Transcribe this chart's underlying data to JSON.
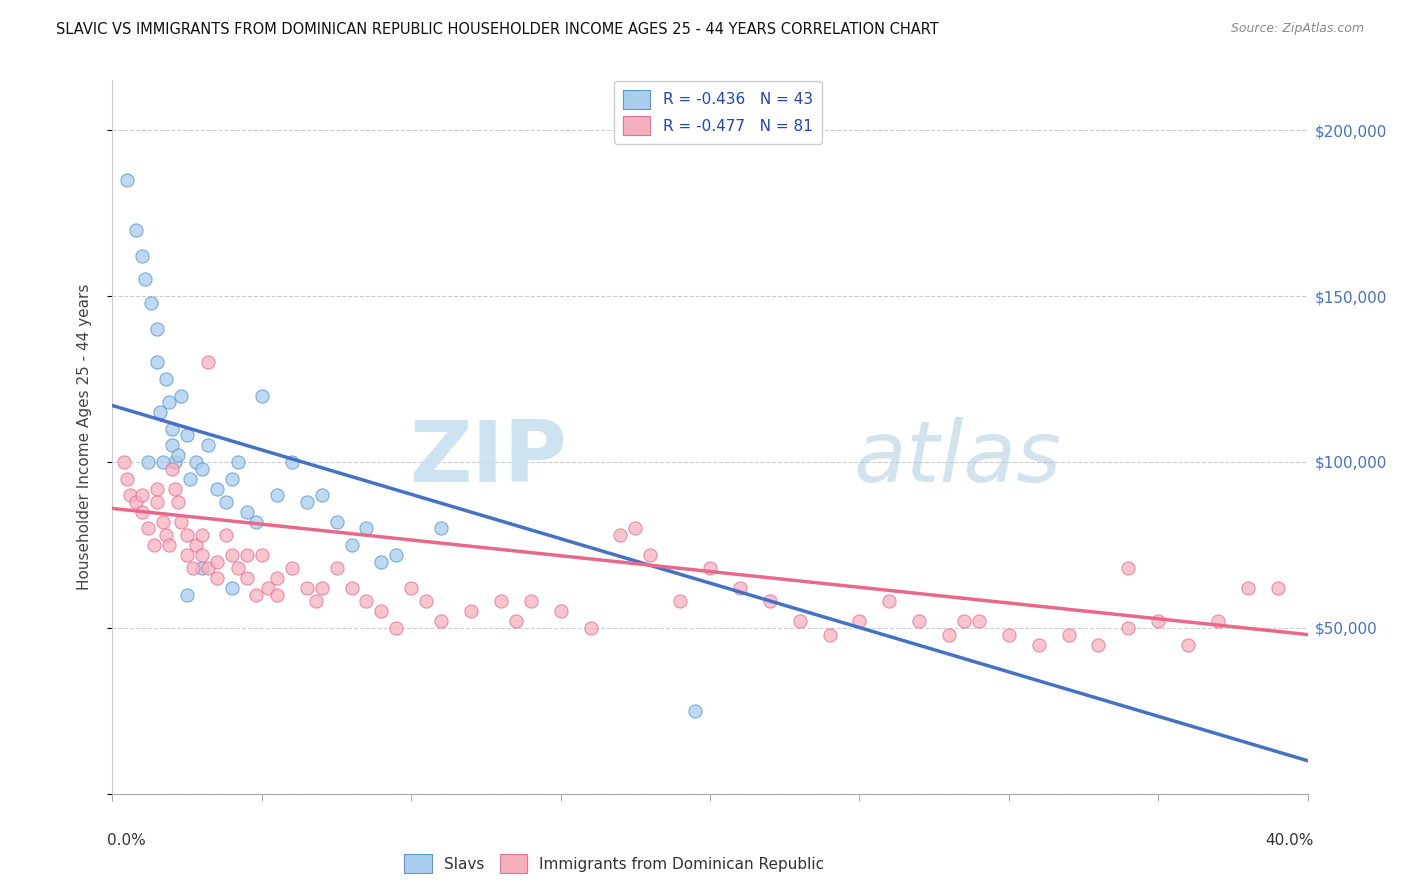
{
  "title": "SLAVIC VS IMMIGRANTS FROM DOMINICAN REPUBLIC HOUSEHOLDER INCOME AGES 25 - 44 YEARS CORRELATION CHART",
  "source": "Source: ZipAtlas.com",
  "ylabel": "Householder Income Ages 25 - 44 years",
  "y_ticks": [
    0,
    50000,
    100000,
    150000,
    200000
  ],
  "y_tick_labels": [
    "",
    "$50,000",
    "$100,000",
    "$150,000",
    "$200,000"
  ],
  "x_min": 0.0,
  "x_max": 40.0,
  "y_min": 0,
  "y_max": 215000,
  "slavs_color": "#aaccee",
  "dr_color": "#f5b0c0",
  "slavs_edge_color": "#5599cc",
  "dr_edge_color": "#e87090",
  "slavs_line_color": "#4472c4",
  "dr_line_color": "#e8688a",
  "right_axis_color": "#4472c4",
  "legend_r1": "R = -0.436",
  "legend_n1": "N = 43",
  "legend_r2": "R = -0.477",
  "legend_n2": "N = 81",
  "label_slavs": "Slavs",
  "label_dr": "Immigrants from Dominican Republic",
  "watermark_zip": "ZIP",
  "watermark_atlas": "atlas",
  "blue_line_x0": 0,
  "blue_line_y0": 117000,
  "blue_line_x1": 40,
  "blue_line_y1": 10000,
  "pink_line_x0": 0,
  "pink_line_y0": 86000,
  "pink_line_x1": 40,
  "pink_line_y1": 48000,
  "slavs_x": [
    0.5,
    0.8,
    1.0,
    1.1,
    1.3,
    1.5,
    1.5,
    1.6,
    1.8,
    1.9,
    2.0,
    2.0,
    2.1,
    2.2,
    2.3,
    2.5,
    2.6,
    2.8,
    3.0,
    3.2,
    3.5,
    3.8,
    4.0,
    4.2,
    4.5,
    4.8,
    5.0,
    5.5,
    6.0,
    6.5,
    7.0,
    7.5,
    8.0,
    8.5,
    9.0,
    9.5,
    11.0,
    19.5,
    2.5,
    3.0,
    4.0,
    1.2,
    1.7
  ],
  "slavs_y": [
    185000,
    170000,
    162000,
    155000,
    148000,
    140000,
    130000,
    115000,
    125000,
    118000,
    110000,
    105000,
    100000,
    102000,
    120000,
    108000,
    95000,
    100000,
    98000,
    105000,
    92000,
    88000,
    95000,
    100000,
    85000,
    82000,
    120000,
    90000,
    100000,
    88000,
    90000,
    82000,
    75000,
    80000,
    70000,
    72000,
    80000,
    25000,
    60000,
    68000,
    62000,
    100000,
    100000
  ],
  "dr_x": [
    0.4,
    0.5,
    0.6,
    0.8,
    1.0,
    1.0,
    1.2,
    1.4,
    1.5,
    1.5,
    1.7,
    1.8,
    1.9,
    2.0,
    2.1,
    2.2,
    2.3,
    2.5,
    2.5,
    2.7,
    2.8,
    3.0,
    3.0,
    3.2,
    3.5,
    3.5,
    3.8,
    4.0,
    4.2,
    4.5,
    4.5,
    4.8,
    5.0,
    5.2,
    5.5,
    5.5,
    6.0,
    6.5,
    6.8,
    7.0,
    7.5,
    8.0,
    8.5,
    9.0,
    9.5,
    10.0,
    10.5,
    11.0,
    12.0,
    13.0,
    13.5,
    14.0,
    15.0,
    16.0,
    17.0,
    18.0,
    19.0,
    20.0,
    21.0,
    22.0,
    23.0,
    24.0,
    25.0,
    26.0,
    27.0,
    28.0,
    29.0,
    30.0,
    31.0,
    32.0,
    33.0,
    34.0,
    35.0,
    36.0,
    37.0,
    38.0,
    39.0,
    17.5,
    28.5,
    34.0,
    3.2
  ],
  "dr_y": [
    100000,
    95000,
    90000,
    88000,
    85000,
    90000,
    80000,
    75000,
    92000,
    88000,
    82000,
    78000,
    75000,
    98000,
    92000,
    88000,
    82000,
    78000,
    72000,
    68000,
    75000,
    78000,
    72000,
    68000,
    65000,
    70000,
    78000,
    72000,
    68000,
    72000,
    65000,
    60000,
    72000,
    62000,
    65000,
    60000,
    68000,
    62000,
    58000,
    62000,
    68000,
    62000,
    58000,
    55000,
    50000,
    62000,
    58000,
    52000,
    55000,
    58000,
    52000,
    58000,
    55000,
    50000,
    78000,
    72000,
    58000,
    68000,
    62000,
    58000,
    52000,
    48000,
    52000,
    58000,
    52000,
    48000,
    52000,
    48000,
    45000,
    48000,
    45000,
    50000,
    52000,
    45000,
    52000,
    62000,
    62000,
    80000,
    52000,
    68000,
    130000
  ]
}
